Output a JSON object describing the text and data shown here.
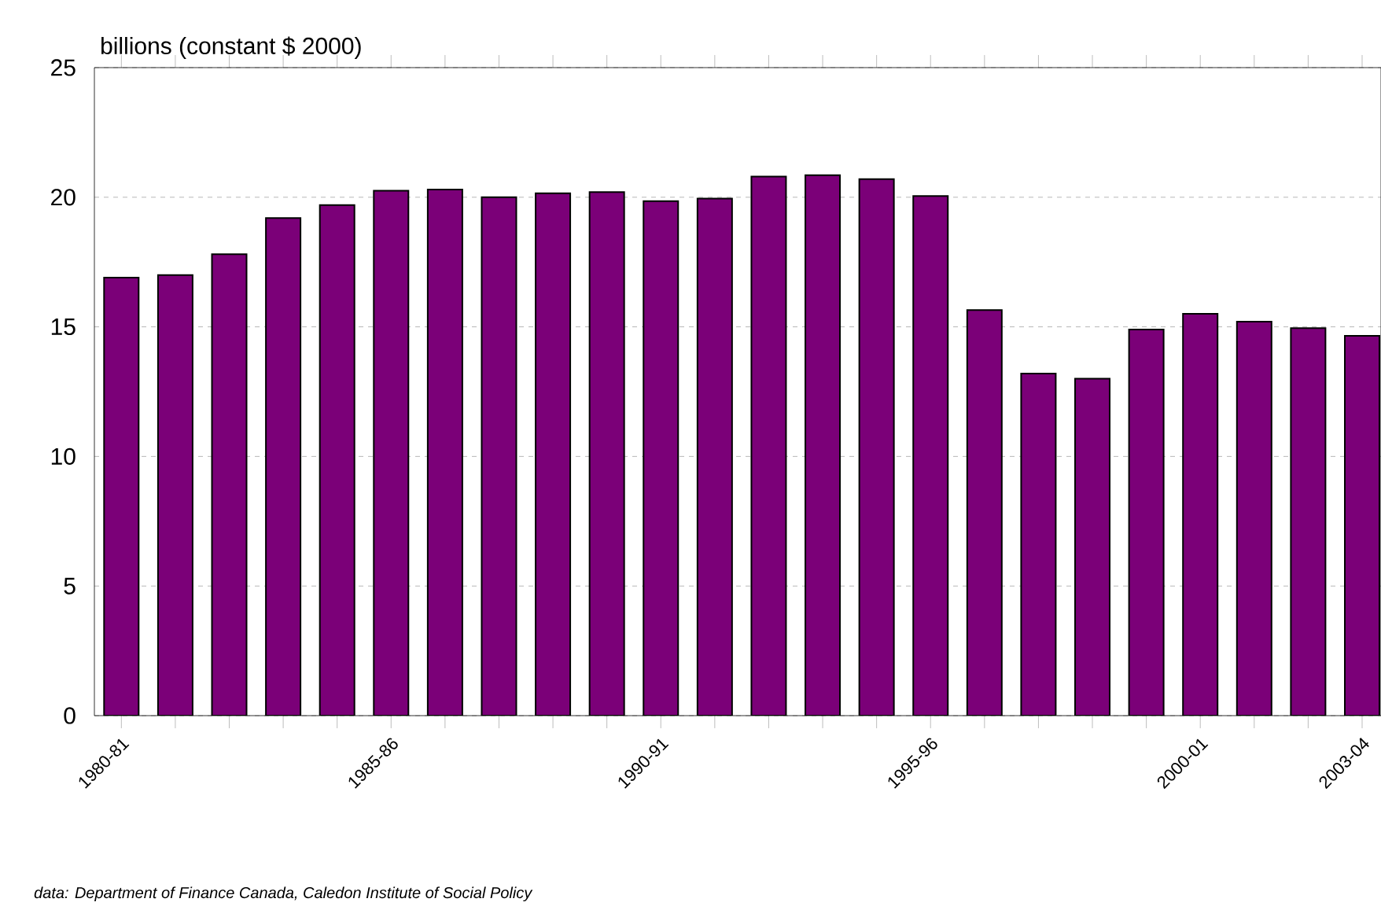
{
  "chart_data": {
    "type": "bar",
    "ylabel": "billions (constant $ 2000)",
    "categories": [
      "1980-81",
      null,
      null,
      null,
      null,
      "1985-86",
      null,
      null,
      null,
      null,
      "1990-91",
      null,
      null,
      null,
      null,
      "1995-96",
      null,
      null,
      null,
      null,
      "2000-01",
      null,
      null,
      "2003-04"
    ],
    "values": [
      16.9,
      17.0,
      17.8,
      19.2,
      19.7,
      20.25,
      20.3,
      20.0,
      20.15,
      20.2,
      19.85,
      19.95,
      20.8,
      20.85,
      20.7,
      20.05,
      15.65,
      13.2,
      13.0,
      14.9,
      15.5,
      15.2,
      14.95,
      14.65
    ],
    "color": "#7b0078",
    "ylim": [
      0,
      25
    ],
    "yticks": [
      0,
      5,
      10,
      15,
      20,
      25
    ],
    "grid": "y",
    "annotations": [
      "data: Department of Finance Canada, Caledon Institute of Social Policy"
    ]
  }
}
